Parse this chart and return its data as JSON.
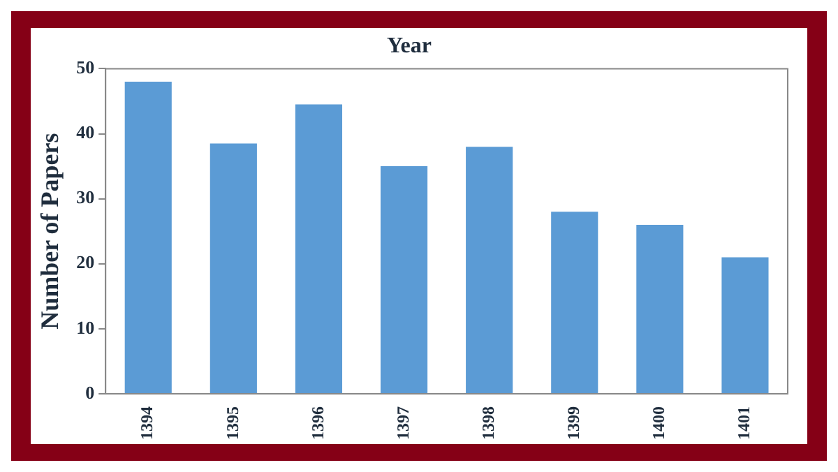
{
  "chart_data": {
    "type": "bar",
    "title": "Year",
    "ylabel": "Number of Papers",
    "categories": [
      "1394",
      "1395",
      "1396",
      "1397",
      "1398",
      "1399",
      "1400",
      "1401"
    ],
    "values": [
      48,
      38.5,
      44.5,
      35,
      38,
      28,
      26,
      21
    ],
    "color": "#5b9bd5",
    "ylim": [
      0,
      50
    ],
    "yticks": [
      0,
      10,
      20,
      30,
      40,
      50
    ],
    "grid": false,
    "legend": false
  }
}
